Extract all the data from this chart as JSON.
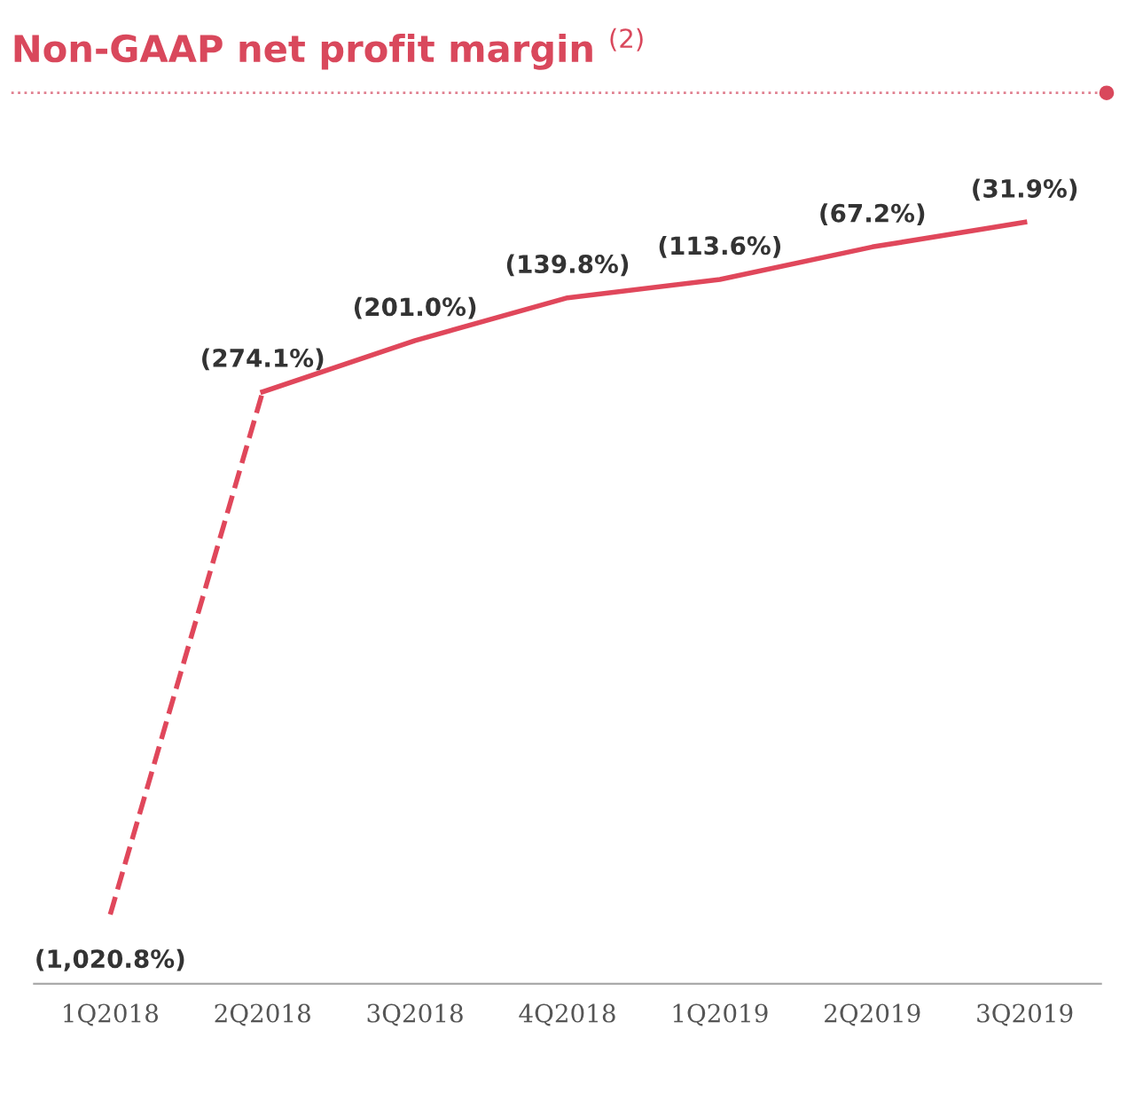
{
  "chart_data": {
    "type": "line",
    "title": "Non-GAAP net profit margin $^{(2)}$",
    "categories": [
      "1Q2018",
      "2Q2018",
      "3Q2018",
      "4Q2018",
      "1Q2019",
      "2Q2019",
      "3Q2019"
    ],
    "series": [
      {
        "color": "#e0475b",
        "line_style": "dashed",
        "values": [
          -1020.8,
          -274.1,
          null,
          null,
          null,
          null,
          null
        ],
        "value_labels": [
          "(1,020.8%)",
          null,
          null,
          null,
          null,
          null,
          null
        ]
      },
      {
        "color": "#e0475b",
        "line_style": "solid",
        "values": [
          null,
          -274.1,
          -201.0,
          -139.8,
          -113.6,
          -67.2,
          -31.9
        ],
        "value_labels": [
          null,
          "(274.1%)",
          "(201.0%)",
          "(139.8%)",
          "(113.6%)",
          "(67.2%)",
          "(31.9%)"
        ]
      }
    ],
    "grid": false,
    "legend": false,
    "marker": "none"
  }
}
